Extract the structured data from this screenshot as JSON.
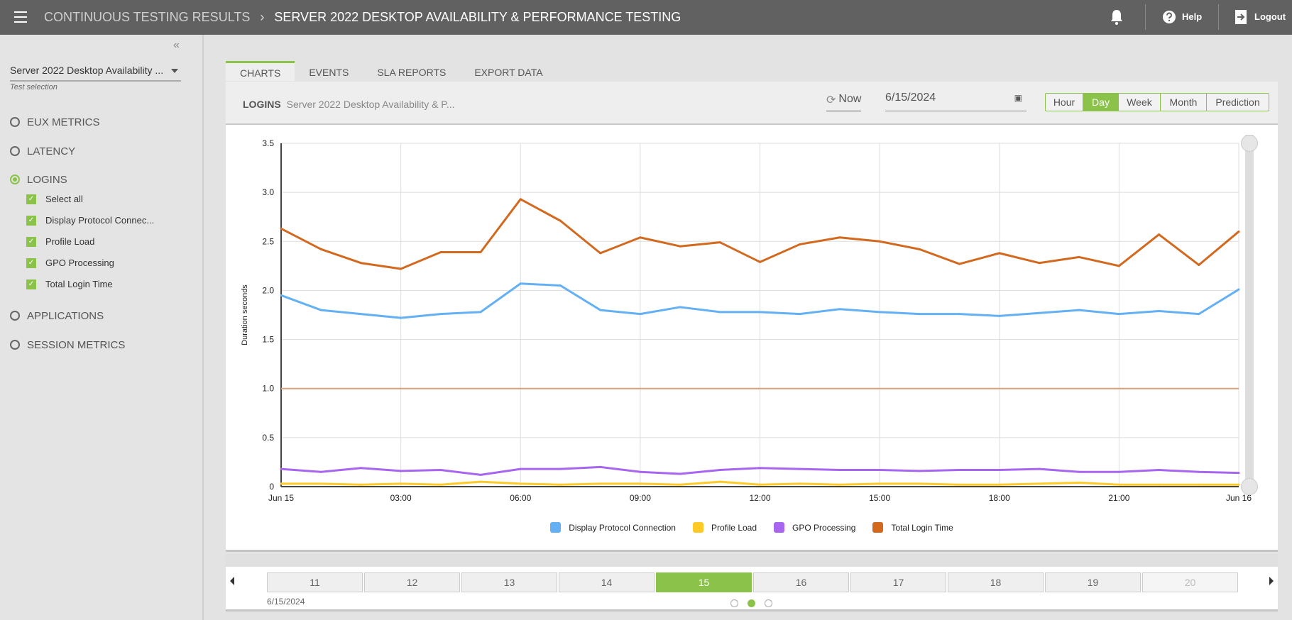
{
  "header": {
    "menu_icon": "hamburger-icon",
    "breadcrumb_root": "CONTINUOUS TESTING RESULTS",
    "separator": "›",
    "title": "SERVER 2022 DESKTOP AVAILABILITY & PERFORMANCE TESTING",
    "help": "Help",
    "logout": "Logout"
  },
  "sidebar": {
    "collapse": "«",
    "test_select": "Server 2022 Desktop Availability ...",
    "test_select_hint": "Test selection",
    "groups": [
      {
        "label": "EUX METRICS",
        "selected": false
      },
      {
        "label": "LATENCY",
        "selected": false
      },
      {
        "label": "LOGINS",
        "selected": true
      },
      {
        "label": "APPLICATIONS",
        "selected": false
      },
      {
        "label": "SESSION METRICS",
        "selected": false
      }
    ],
    "login_items": [
      {
        "label": "Select all",
        "checked": true
      },
      {
        "label": "Display Protocol Connec...",
        "checked": true
      },
      {
        "label": "Profile Load",
        "checked": true
      },
      {
        "label": "GPO Processing",
        "checked": true
      },
      {
        "label": "Total Login Time",
        "checked": true
      }
    ]
  },
  "tabs": [
    {
      "label": "CHARTS",
      "active": true
    },
    {
      "label": "EVENTS"
    },
    {
      "label": "SLA REPORTS"
    },
    {
      "label": "EXPORT DATA"
    }
  ],
  "toolbar": {
    "metric": "LOGINS",
    "test_name": "Server 2022 Desktop Availability & P...",
    "now": "Now",
    "date": "6/15/2024",
    "ranges": [
      "Hour",
      "Day",
      "Week",
      "Month",
      "Prediction"
    ],
    "active_range": "Day"
  },
  "chart_data": {
    "type": "line",
    "ylabel": "Duration seconds",
    "ylim": [
      0,
      3.5
    ],
    "yticks": [
      "0",
      "0.5",
      "1.0",
      "1.5",
      "2.0",
      "2.5",
      "3.0",
      "3.5"
    ],
    "xticks": [
      "Jun 15",
      "03:00",
      "06:00",
      "09:00",
      "12:00",
      "15:00",
      "18:00",
      "21:00",
      "Jun 16"
    ],
    "x": [
      "00:00",
      "01:00",
      "02:00",
      "03:00",
      "04:00",
      "05:00",
      "06:00",
      "07:00",
      "08:00",
      "09:00",
      "10:00",
      "11:00",
      "12:00",
      "13:00",
      "14:00",
      "15:00",
      "16:00",
      "17:00",
      "18:00",
      "19:00",
      "20:00",
      "21:00",
      "22:00",
      "23:00",
      "24:00"
    ],
    "threshold": 1.0,
    "threshold_color": "#d9a07a",
    "grid": true,
    "legend": "bottom",
    "series": [
      {
        "name": "Display Protocol Connection",
        "color": "#64b0f4",
        "values": [
          1.95,
          1.8,
          1.76,
          1.72,
          1.76,
          1.78,
          2.07,
          2.05,
          1.8,
          1.76,
          1.83,
          1.78,
          1.78,
          1.76,
          1.81,
          1.78,
          1.76,
          1.76,
          1.74,
          1.77,
          1.8,
          1.76,
          1.79,
          1.76,
          2.01
        ]
      },
      {
        "name": "Profile Load",
        "color": "#ffca28",
        "values": [
          0.03,
          0.03,
          0.02,
          0.03,
          0.02,
          0.05,
          0.03,
          0.02,
          0.03,
          0.03,
          0.02,
          0.05,
          0.02,
          0.03,
          0.02,
          0.03,
          0.03,
          0.02,
          0.02,
          0.03,
          0.04,
          0.02,
          0.02,
          0.02,
          0.02
        ]
      },
      {
        "name": "GPO Processing",
        "color": "#a765f0",
        "values": [
          0.18,
          0.15,
          0.19,
          0.16,
          0.17,
          0.12,
          0.18,
          0.18,
          0.2,
          0.15,
          0.13,
          0.17,
          0.19,
          0.18,
          0.17,
          0.17,
          0.16,
          0.17,
          0.17,
          0.18,
          0.15,
          0.15,
          0.17,
          0.15,
          0.14
        ]
      },
      {
        "name": "Total Login Time",
        "color": "#d2691e",
        "values": [
          2.63,
          2.42,
          2.28,
          2.22,
          2.39,
          2.39,
          2.93,
          2.71,
          2.38,
          2.54,
          2.45,
          2.49,
          2.29,
          2.47,
          2.54,
          2.5,
          2.42,
          2.27,
          2.38,
          2.28,
          2.34,
          2.25,
          2.57,
          2.26,
          2.6
        ]
      }
    ]
  },
  "pager": {
    "days": [
      "11",
      "12",
      "13",
      "14",
      "15",
      "16",
      "17",
      "18",
      "19",
      "20"
    ],
    "active": "15",
    "disabled": "20",
    "date": "6/15/2024",
    "page_dots": 3,
    "active_dot": 2
  },
  "colors": {
    "accent": "#8bc34a",
    "header": "#616161"
  }
}
